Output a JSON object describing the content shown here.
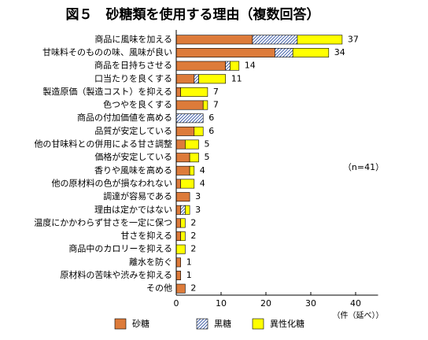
{
  "chart_data": {
    "type": "stacked-bar-horizontal",
    "title": "図５　砂糖類を使用する理由（複数回答）",
    "categories": [
      "商品に風味を加える",
      "甘味料そのものの味、風味が良い",
      "商品を日持ちさせる",
      "口当たりを良くする",
      "製造原価（製造コスト）を抑える",
      "色つやを良くする",
      "商品の付加価値を高める",
      "品質が安定している",
      "他の甘味料との併用による甘さ調整",
      "価格が安定している",
      "香りや風味を高める",
      "他の原材料の色が損なわれない",
      "調達が容易である",
      "理由は定かではない",
      "温度にかかわらず甘さを一定に保つ",
      "甘さを抑える",
      "商品中のカロリーを抑える",
      "離水を防ぐ",
      "原材料の苦味や渋みを抑える",
      "その他"
    ],
    "series": [
      {
        "name": "砂糖",
        "color": "#dd7b3a",
        "values": [
          17,
          22,
          11,
          4,
          1,
          6,
          0,
          4,
          2,
          3,
          3,
          1,
          3,
          1,
          1,
          1,
          0,
          1,
          1,
          2
        ]
      },
      {
        "name": "黒糖",
        "color": "hatch",
        "values": [
          10,
          4,
          1,
          1,
          0,
          0,
          6,
          0,
          0,
          0,
          0,
          0,
          0,
          1,
          0,
          0,
          0,
          0,
          0,
          0
        ]
      },
      {
        "name": "異性化糖",
        "color": "#ffff00",
        "values": [
          10,
          8,
          2,
          6,
          6,
          1,
          0,
          2,
          3,
          2,
          1,
          3,
          0,
          1,
          1,
          1,
          2,
          0,
          0,
          0
        ]
      }
    ],
    "totals": [
      37,
      34,
      14,
      11,
      7,
      7,
      6,
      6,
      5,
      5,
      4,
      4,
      3,
      3,
      2,
      2,
      2,
      1,
      1,
      2
    ],
    "xlim": [
      0,
      45
    ],
    "xticks": [
      0,
      10,
      20,
      30,
      40
    ],
    "x_label": "（件（延べ））",
    "annotation": "（n=41）"
  }
}
